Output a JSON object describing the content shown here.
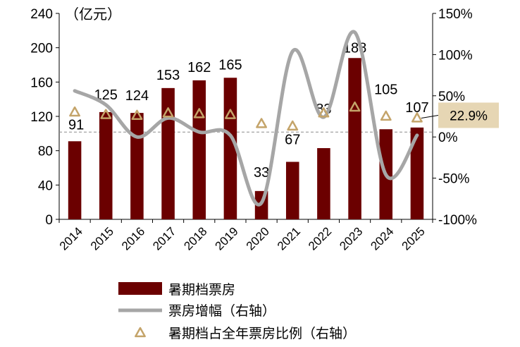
{
  "chart_data": {
    "type": "bar",
    "unit_label": "（亿元）",
    "categories": [
      "2014",
      "2015",
      "2016",
      "2017",
      "2018",
      "2019",
      "2020",
      "2021",
      "2022",
      "2023",
      "2024",
      "2025"
    ],
    "left_axis": {
      "ylim": [
        0,
        240
      ],
      "ticks": [
        0,
        40,
        80,
        120,
        160,
        200,
        240
      ]
    },
    "right_axis": {
      "ylim": [
        -100,
        150
      ],
      "ticks": [
        -100,
        -50,
        0,
        50,
        100,
        150
      ],
      "tick_labels": [
        "-100%",
        "-50%",
        "0%",
        "50%",
        "100%",
        "150%"
      ]
    },
    "series": [
      {
        "name": "暑期档票房",
        "kind": "bar",
        "axis": "left",
        "color": "#6b0000",
        "values": [
          91,
          125,
          124,
          153,
          162,
          165,
          33,
          67,
          83,
          188,
          105,
          107
        ]
      },
      {
        "name": "票房增幅（右轴）",
        "kind": "line",
        "axis": "right",
        "color": "#a6a6a6",
        "values": [
          56,
          39,
          0,
          23,
          6,
          2,
          -80,
          104,
          24,
          127,
          -46,
          2
        ]
      },
      {
        "name": "暑期档占全年票房比例（右轴）",
        "kind": "marker",
        "axis": "right",
        "color": "#c4a46a",
        "values": [
          30,
          27,
          26,
          29,
          28,
          27,
          16,
          13,
          29,
          36,
          25,
          22.9
        ]
      }
    ],
    "reference_line": {
      "axis": "right",
      "value": 6
    },
    "callout": {
      "text": "22.9%",
      "series": "暑期档占全年票房比例（右轴）",
      "category": "2025"
    }
  }
}
